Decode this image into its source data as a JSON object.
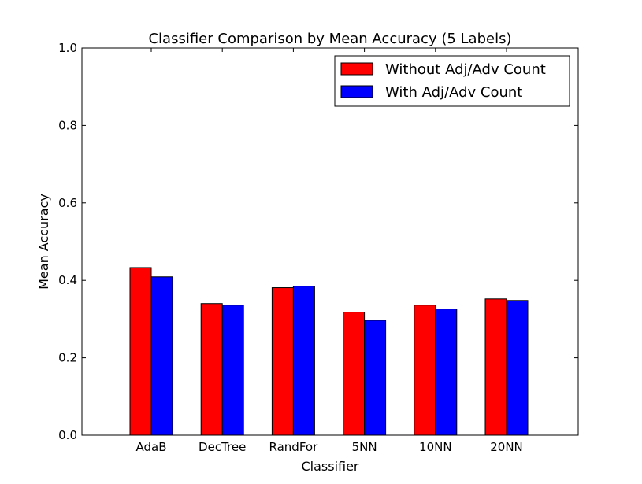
{
  "chart_data": {
    "type": "bar",
    "title": "Classifier Comparison by Mean Accuracy (5 Labels)",
    "xlabel": "Classifier",
    "ylabel": "Mean Accuracy",
    "ylim": [
      0,
      1
    ],
    "yticks": [
      "0.0",
      "0.2",
      "0.4",
      "0.6",
      "0.8",
      "1.0"
    ],
    "categories": [
      "AdaB",
      "DecTree",
      "RandFor",
      "5NN",
      "10NN",
      "20NN"
    ],
    "series": [
      {
        "name": "Without Adj/Adv Count",
        "color": "#ff0000",
        "values": [
          0.433,
          0.34,
          0.381,
          0.318,
          0.336,
          0.352
        ]
      },
      {
        "name": "With Adj/Adv Count",
        "color": "#0000ff",
        "values": [
          0.409,
          0.336,
          0.385,
          0.297,
          0.326,
          0.348
        ]
      }
    ],
    "grid": false,
    "legend_position": "top-right"
  }
}
